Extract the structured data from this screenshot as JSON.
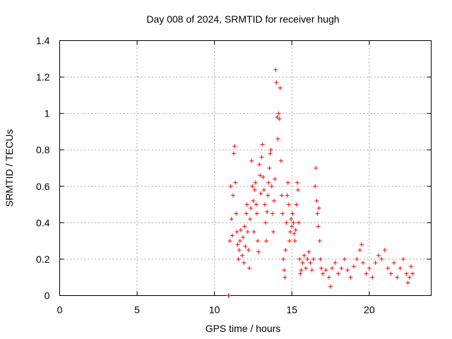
{
  "chart_data": {
    "type": "scatter",
    "title": "Day 008 of 2024, SRMTID for receiver hugh",
    "xlabel": "GPS time / hours",
    "ylabel": "SRMTID / TECUs",
    "xlim": [
      0,
      24
    ],
    "ylim": [
      0,
      1.4
    ],
    "xticks": [
      0,
      5,
      10,
      15,
      20
    ],
    "xtick_labels": [
      "0",
      "5",
      "10",
      "15",
      "20"
    ],
    "yticks": [
      0,
      0.2,
      0.4,
      0.6,
      0.8,
      1,
      1.2,
      1.4
    ],
    "ytick_labels": [
      "0",
      "0.2",
      "0.4",
      "0.6",
      "0.8",
      "1",
      "1.2",
      "1.4"
    ],
    "grid": true,
    "marker": "+",
    "series": [
      {
        "name": "SRMTID",
        "color": "#ff0000",
        "points": [
          [
            10.9,
            0.0
          ],
          [
            10.92,
            0.0
          ],
          [
            11.0,
            0.3
          ],
          [
            11.05,
            0.6
          ],
          [
            11.1,
            0.42
          ],
          [
            11.15,
            0.33
          ],
          [
            11.2,
            0.55
          ],
          [
            11.25,
            0.78
          ],
          [
            11.3,
            0.82
          ],
          [
            11.35,
            0.62
          ],
          [
            11.4,
            0.45
          ],
          [
            11.45,
            0.35
          ],
          [
            11.5,
            0.28
          ],
          [
            11.55,
            0.2
          ],
          [
            11.6,
            0.25
          ],
          [
            11.65,
            0.3
          ],
          [
            11.7,
            0.36
          ],
          [
            11.8,
            0.22
          ],
          [
            11.85,
            0.32
          ],
          [
            11.9,
            0.18
          ],
          [
            11.95,
            0.38
          ],
          [
            12.0,
            0.27
          ],
          [
            12.05,
            0.45
          ],
          [
            12.1,
            0.5
          ],
          [
            12.15,
            0.35
          ],
          [
            12.2,
            0.25
          ],
          [
            12.25,
            0.15
          ],
          [
            12.3,
            0.42
          ],
          [
            12.35,
            0.48
          ],
          [
            12.4,
            0.74
          ],
          [
            12.45,
            0.6
          ],
          [
            12.5,
            0.52
          ],
          [
            12.55,
            0.35
          ],
          [
            12.6,
            0.58
          ],
          [
            12.65,
            0.62
          ],
          [
            12.7,
            0.5
          ],
          [
            12.75,
            0.45
          ],
          [
            12.8,
            0.3
          ],
          [
            12.85,
            0.24
          ],
          [
            12.9,
            0.72
          ],
          [
            12.95,
            0.66
          ],
          [
            13.0,
            0.56
          ],
          [
            13.05,
            0.76
          ],
          [
            13.1,
            0.83
          ],
          [
            13.15,
            0.65
          ],
          [
            13.2,
            0.58
          ],
          [
            13.25,
            0.5
          ],
          [
            13.3,
            0.4
          ],
          [
            13.35,
            0.3
          ],
          [
            13.4,
            0.46
          ],
          [
            13.45,
            0.55
          ],
          [
            13.5,
            0.62
          ],
          [
            13.55,
            0.7
          ],
          [
            13.6,
            0.78
          ],
          [
            13.65,
            0.8
          ],
          [
            13.7,
            0.6
          ],
          [
            13.75,
            0.45
          ],
          [
            13.8,
            0.35
          ],
          [
            13.85,
            0.52
          ],
          [
            13.9,
            0.64
          ],
          [
            13.95,
            1.24
          ],
          [
            14.0,
            1.17
          ],
          [
            14.05,
            0.98
          ],
          [
            14.1,
            0.86
          ],
          [
            14.15,
            1.0
          ],
          [
            14.2,
            0.97
          ],
          [
            14.25,
            1.14
          ],
          [
            14.3,
            0.74
          ],
          [
            14.35,
            0.55
          ],
          [
            14.4,
            0.45
          ],
          [
            14.45,
            0.2
          ],
          [
            14.5,
            0.14
          ],
          [
            14.55,
            0.1
          ],
          [
            14.6,
            0.25
          ],
          [
            14.65,
            0.4
          ],
          [
            14.7,
            0.55
          ],
          [
            14.75,
            0.62
          ],
          [
            14.8,
            0.5
          ],
          [
            14.85,
            0.3
          ],
          [
            14.9,
            0.35
          ],
          [
            14.95,
            0.42
          ],
          [
            15.0,
            0.38
          ],
          [
            15.05,
            0.45
          ],
          [
            15.1,
            0.4
          ],
          [
            15.15,
            0.34
          ],
          [
            15.2,
            0.3
          ],
          [
            15.25,
            0.36
          ],
          [
            15.3,
            0.5
          ],
          [
            15.35,
            0.62
          ],
          [
            15.4,
            0.58
          ],
          [
            15.45,
            0.4
          ],
          [
            15.5,
            0.2
          ],
          [
            15.55,
            0.12
          ],
          [
            15.6,
            0.14
          ],
          [
            15.7,
            0.18
          ],
          [
            15.8,
            0.22
          ],
          [
            15.9,
            0.15
          ],
          [
            16.0,
            0.2
          ],
          [
            16.1,
            0.24
          ],
          [
            16.2,
            0.18
          ],
          [
            16.3,
            0.14
          ],
          [
            16.4,
            0.2
          ],
          [
            16.5,
            0.6
          ],
          [
            16.55,
            0.7
          ],
          [
            16.6,
            0.52
          ],
          [
            16.65,
            0.45
          ],
          [
            16.7,
            0.38
          ],
          [
            16.75,
            0.48
          ],
          [
            16.8,
            0.3
          ],
          [
            16.85,
            0.2
          ],
          [
            16.9,
            0.15
          ],
          [
            17.0,
            0.12
          ],
          [
            17.2,
            0.14
          ],
          [
            17.4,
            0.1
          ],
          [
            17.5,
            0.05
          ],
          [
            17.6,
            0.15
          ],
          [
            17.8,
            0.18
          ],
          [
            18.0,
            0.12
          ],
          [
            18.2,
            0.15
          ],
          [
            18.4,
            0.2
          ],
          [
            18.6,
            0.14
          ],
          [
            18.8,
            0.1
          ],
          [
            19.0,
            0.16
          ],
          [
            19.2,
            0.2
          ],
          [
            19.4,
            0.25
          ],
          [
            19.5,
            0.28
          ],
          [
            19.6,
            0.18
          ],
          [
            19.8,
            0.12
          ],
          [
            20.0,
            0.15
          ],
          [
            20.2,
            0.1
          ],
          [
            20.4,
            0.18
          ],
          [
            20.6,
            0.22
          ],
          [
            20.8,
            0.2
          ],
          [
            21.0,
            0.25
          ],
          [
            21.2,
            0.15
          ],
          [
            21.4,
            0.12
          ],
          [
            21.6,
            0.18
          ],
          [
            21.8,
            0.1
          ],
          [
            22.0,
            0.15
          ],
          [
            22.2,
            0.2
          ],
          [
            22.4,
            0.12
          ],
          [
            22.5,
            0.07
          ],
          [
            22.6,
            0.1
          ],
          [
            22.7,
            0.16
          ],
          [
            22.8,
            0.12
          ]
        ]
      }
    ]
  }
}
